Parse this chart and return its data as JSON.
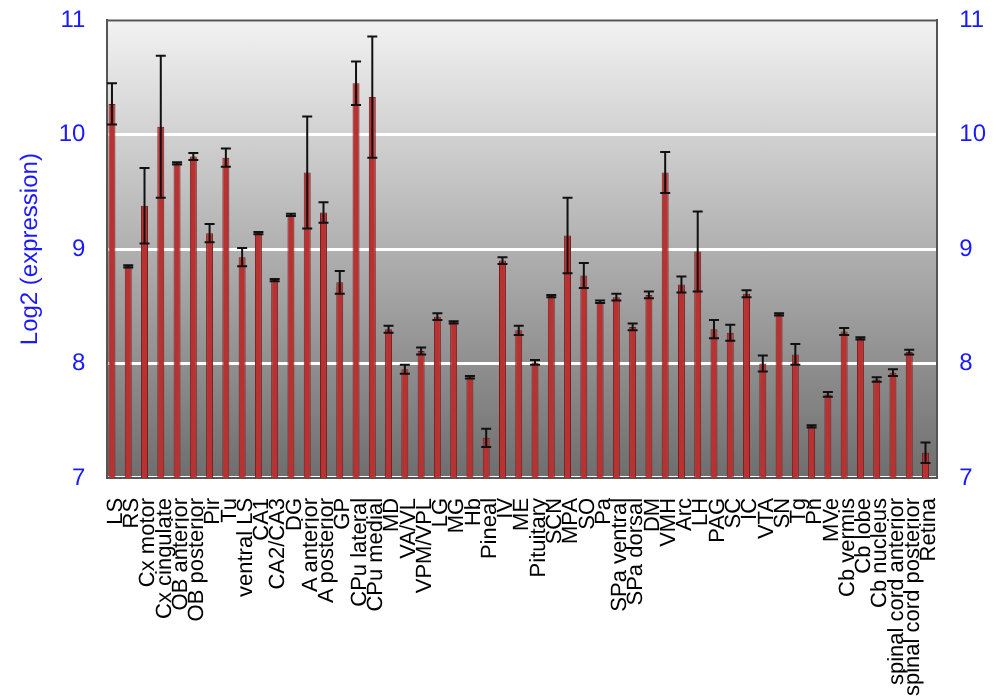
{
  "chart_data": {
    "type": "bar",
    "ylabel": "Log2 (expression)",
    "categories": [
      "LS",
      "RS",
      "Cx motor",
      "Cx cingulate",
      "OB anterior",
      "OB posterior",
      "Pir",
      "Tu",
      "ventral LS",
      "CA1",
      "CA2/CA3",
      "DG",
      "A anterior",
      "A posterior",
      "GP",
      "CPu lateral",
      "CPu medial",
      "MD",
      "VA/VL",
      "VPM/VPL",
      "LG",
      "MG",
      "Hb",
      "Pineal",
      "IV",
      "ME",
      "Pituitary",
      "SCN",
      "MPA",
      "SO",
      "Pa",
      "SPa ventral",
      "SPa dorsal",
      "DM",
      "VMH",
      "Arc",
      "LH",
      "PAG",
      "SC",
      "IC",
      "VTA",
      "SN",
      "Tg",
      "Pn",
      "MVe",
      "Cb vermis",
      "Cb lobe",
      "Cb nucleus",
      "spinal cord anterior",
      "spinal cord posterior",
      "Retina"
    ],
    "values": [
      10.27,
      8.85,
      9.38,
      10.07,
      9.75,
      9.81,
      9.14,
      9.8,
      8.93,
      9.14,
      8.73,
      9.3,
      9.67,
      9.32,
      8.71,
      10.45,
      10.33,
      8.3,
      7.95,
      8.11,
      8.41,
      8.36,
      7.88,
      7.35,
      8.9,
      8.29,
      8.01,
      8.59,
      9.12,
      8.77,
      8.54,
      8.58,
      8.32,
      8.6,
      9.67,
      8.69,
      8.98,
      8.3,
      8.27,
      8.61,
      8.0,
      8.43,
      8.08,
      7.45,
      7.73,
      8.28,
      8.22,
      7.86,
      7.92,
      8.1,
      7.22
    ],
    "errors": [
      0.18,
      0.01,
      0.33,
      0.62,
      0.01,
      0.03,
      0.08,
      0.08,
      0.08,
      0.01,
      0.01,
      0.01,
      0.49,
      0.09,
      0.1,
      0.19,
      0.53,
      0.03,
      0.04,
      0.03,
      0.03,
      0.01,
      0.01,
      0.08,
      0.03,
      0.04,
      0.02,
      0.01,
      0.33,
      0.11,
      0.01,
      0.03,
      0.03,
      0.03,
      0.18,
      0.07,
      0.35,
      0.08,
      0.07,
      0.03,
      0.07,
      0.01,
      0.09,
      0.01,
      0.02,
      0.03,
      0.01,
      0.02,
      0.03,
      0.02,
      0.09
    ],
    "color": "#b83232",
    "ylim": [
      7,
      11
    ],
    "yticks": [
      7,
      8,
      9,
      10,
      11
    ],
    "y2lim": [
      7,
      11
    ],
    "y2ticks": [
      7,
      8,
      9,
      10,
      11
    ],
    "grid": "y",
    "legend": false
  }
}
